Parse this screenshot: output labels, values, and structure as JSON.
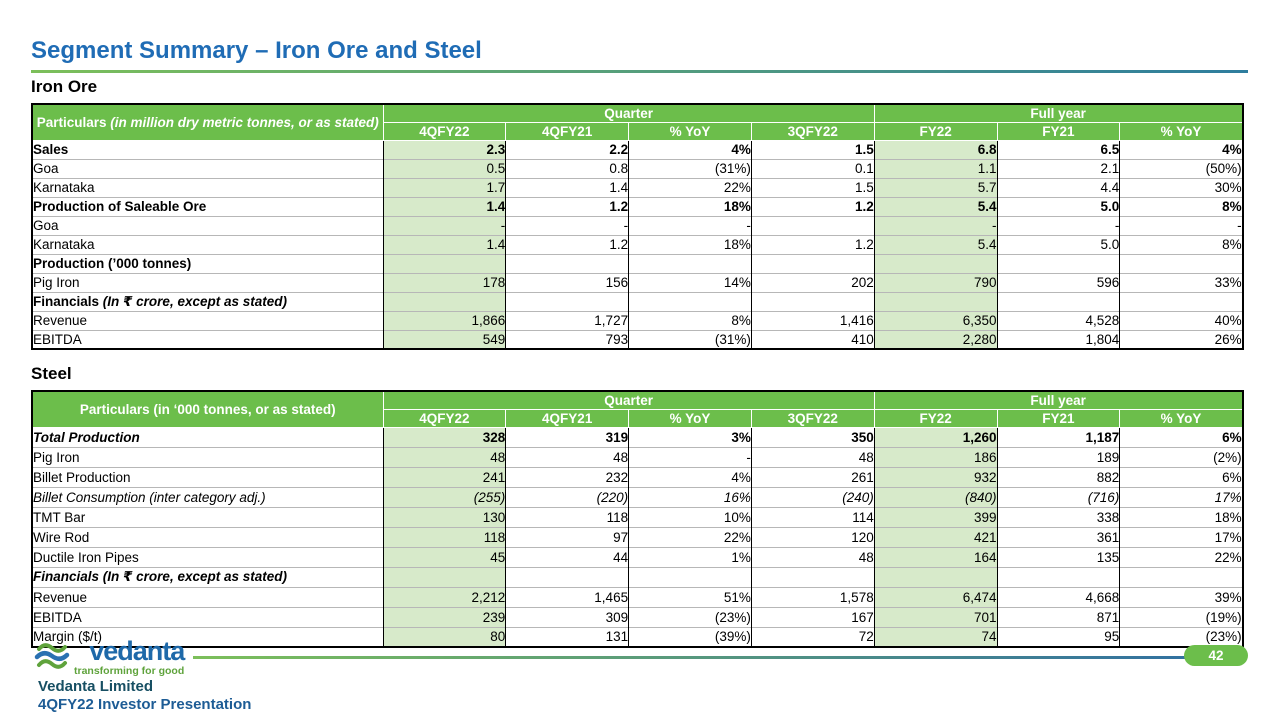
{
  "slide": {
    "title": "Segment Summary – Iron Ore and Steel",
    "page_number": "42"
  },
  "colors": {
    "title_blue": "#1F6CB5",
    "header_green": "#6CBE4B",
    "column_tint_green": "#D7EACA",
    "badge_green": "#6CBE4B",
    "rule_gradient_start": "#7CBF5A",
    "rule_gradient_end": "#2E7D9E",
    "company_teal": "#174F63",
    "presentation_blue": "#1D5C95"
  },
  "columns": {
    "groups": [
      {
        "label": "Quarter",
        "span": 4
      },
      {
        "label": "Full year",
        "span": 3
      }
    ],
    "cols": [
      "4QFY22",
      "4QFY21",
      "% YoY",
      "3QFY22",
      "FY22",
      "FY21",
      "% YoY"
    ],
    "tinted_col_indexes": [
      0,
      4
    ]
  },
  "sections": [
    {
      "id": "iron-ore",
      "heading": "Iron Ore",
      "particulars_main": "Particulars ",
      "particulars_note": "(in million dry metric tonnes, or as stated)",
      "rows": [
        {
          "label": "Sales",
          "style": "section",
          "indent": 0,
          "values": [
            "2.3",
            "2.2",
            "4%",
            "1.5",
            "6.8",
            "6.5",
            "4%"
          ]
        },
        {
          "label": "Goa",
          "style": "item",
          "indent": 1,
          "values": [
            "0.5",
            "0.8",
            "(31%)",
            "0.1",
            "1.1",
            "2.1",
            "(50%)"
          ]
        },
        {
          "label": "Karnataka",
          "style": "item",
          "indent": 1,
          "values": [
            "1.7",
            "1.4",
            "22%",
            "1.5",
            "5.7",
            "4.4",
            "30%"
          ]
        },
        {
          "label": "Production of Saleable Ore",
          "style": "section",
          "indent": 0,
          "values": [
            "1.4",
            "1.2",
            "18%",
            "1.2",
            "5.4",
            "5.0",
            "8%"
          ]
        },
        {
          "label": "Goa",
          "style": "item",
          "indent": 1,
          "values": [
            "-",
            "-",
            "-",
            "",
            "-",
            "-",
            "-"
          ]
        },
        {
          "label": "Karnataka",
          "style": "item",
          "indent": 1,
          "values": [
            "1.4",
            "1.2",
            "18%",
            "1.2",
            "5.4",
            "5.0",
            "8%"
          ]
        },
        {
          "label": "Production (’000 tonnes)",
          "style": "section",
          "indent": 0,
          "values": [
            "",
            "",
            "",
            "",
            "",
            "",
            ""
          ]
        },
        {
          "label": "Pig Iron",
          "style": "item",
          "indent": 1,
          "values": [
            "178",
            "156",
            "14%",
            "202",
            "790",
            "596",
            "33%"
          ]
        },
        {
          "label": "Financials ",
          "suffix": "(In ₹ crore, except as stated)",
          "style": "section",
          "indent": 0,
          "values": [
            "",
            "",
            "",
            "",
            "",
            "",
            ""
          ]
        },
        {
          "label": "Revenue",
          "style": "item",
          "indent": 1,
          "values": [
            "1,866",
            "1,727",
            "8%",
            "1,416",
            "6,350",
            "4,528",
            "40%"
          ]
        },
        {
          "label": "EBITDA",
          "style": "item",
          "indent": 1,
          "values": [
            "549",
            "793",
            "(31%)",
            "410",
            "2,280",
            "1,804",
            "26%"
          ]
        }
      ]
    },
    {
      "id": "steel",
      "heading": "Steel",
      "particulars_main": "Particulars (in ‘000 tonnes, or as stated)",
      "particulars_note": "",
      "rows": [
        {
          "label": "Total Production",
          "style": "section-em",
          "indent": 0,
          "values": [
            "328",
            "319",
            "3%",
            "350",
            "1,260",
            "1,187",
            "6%"
          ]
        },
        {
          "label": "Pig Iron",
          "style": "item",
          "indent": 1,
          "values": [
            "48",
            "48",
            "-",
            "48",
            "186",
            "189",
            "(2%)"
          ]
        },
        {
          "label": "Billet Production",
          "style": "item",
          "indent": 1,
          "values": [
            "241",
            "232",
            "4%",
            "261",
            "932",
            "882",
            "6%"
          ]
        },
        {
          "label": "Billet Consumption (inter category adj.)",
          "style": "item-small",
          "indent": 2,
          "values": [
            "(255)",
            "(220)",
            "16%",
            "(240)",
            "(840)",
            "(716)",
            "17%"
          ]
        },
        {
          "label": "TMT Bar",
          "style": "item",
          "indent": 1,
          "values": [
            "130",
            "118",
            "10%",
            "114",
            "399",
            "338",
            "18%"
          ]
        },
        {
          "label": "Wire Rod",
          "style": "item",
          "indent": 1,
          "values": [
            "118",
            "97",
            "22%",
            "120",
            "421",
            "361",
            "17%"
          ]
        },
        {
          "label": "Ductile Iron Pipes",
          "style": "item",
          "indent": 1,
          "values": [
            "45",
            "44",
            "1%",
            "48",
            "164",
            "135",
            "22%"
          ]
        },
        {
          "label": "Financials ",
          "suffix": "(In ₹ crore, except as stated)",
          "style": "section-em",
          "indent": 0,
          "values": [
            "",
            "",
            "",
            "",
            "",
            "",
            ""
          ]
        },
        {
          "label": "Revenue",
          "style": "item",
          "indent": 1,
          "values": [
            "2,212",
            "1,465",
            "51%",
            "1,578",
            "6,474",
            "4,668",
            "39%"
          ]
        },
        {
          "label": "EBITDA",
          "style": "item",
          "indent": 1,
          "values": [
            "239",
            "309",
            "(23%)",
            "167",
            "701",
            "871",
            "(19%)"
          ]
        },
        {
          "label": "Margin ($/t)",
          "style": "item",
          "indent": 1,
          "values": [
            "80",
            "131",
            "(39%)",
            "72",
            "74",
            "95",
            "(23%)"
          ]
        }
      ]
    }
  ],
  "footer": {
    "logo_icon": "vedanta-waves-icon",
    "logo_wordmark": "vedanta",
    "logo_tagline": "transforming for good",
    "company_name": "Vedanta Limited",
    "presentation_name": "4QFY22 Investor Presentation"
  }
}
